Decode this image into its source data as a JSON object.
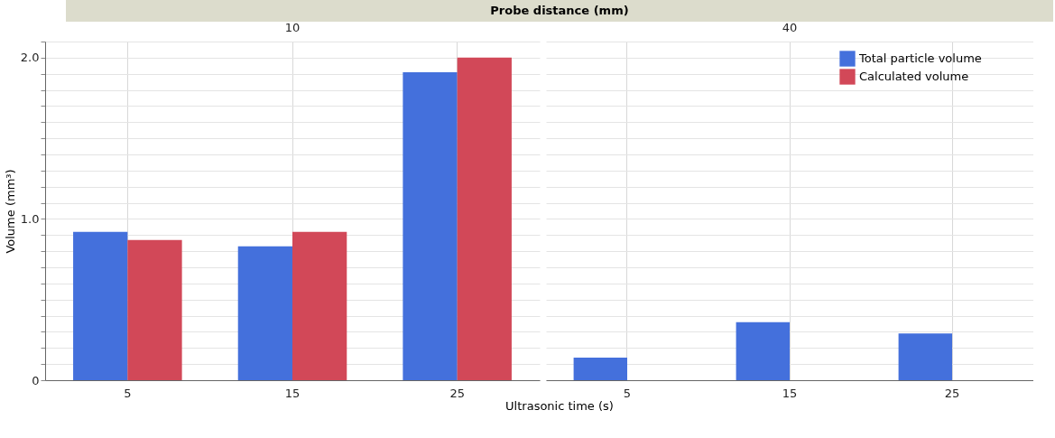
{
  "chart_data": [
    {
      "type": "bar",
      "title": "Probe distance (mm)",
      "subtitle": "10",
      "xlabel": "Ultrasonic time (s)",
      "ylabel": "Volume (mm³)",
      "categories": [
        "5",
        "15",
        "25"
      ],
      "series": [
        {
          "name": "Total particle volume",
          "color": "#4470dc",
          "values": [
            0.92,
            0.83,
            1.91
          ]
        },
        {
          "name": "Calculated volume",
          "color": "#d24858",
          "values": [
            0.87,
            0.92,
            2.0
          ]
        }
      ],
      "ylim": [
        0,
        2.1
      ],
      "yticks": [
        0,
        {
          "value": 0.1,
          "label": null
        },
        {
          "value": 0.2,
          "label": null
        },
        {
          "value": 0.3,
          "label": null
        },
        {
          "value": 0.4,
          "label": null
        },
        {
          "value": 0.5,
          "label": null
        },
        {
          "value": 0.6,
          "label": null
        },
        {
          "value": 0.7,
          "label": null
        },
        {
          "value": 0.8,
          "label": null
        },
        {
          "value": 0.9,
          "label": null
        },
        {
          "value": 1.0,
          "label": "1.0"
        },
        {
          "value": 1.1,
          "label": null
        },
        {
          "value": 1.2,
          "label": null
        },
        {
          "value": 1.3,
          "label": null
        },
        {
          "value": 1.4,
          "label": null
        },
        {
          "value": 1.5,
          "label": null
        },
        {
          "value": 1.6,
          "label": null
        },
        {
          "value": 1.7,
          "label": null
        },
        {
          "value": 1.8,
          "label": null
        },
        {
          "value": 1.9,
          "label": null
        },
        {
          "value": 2.0,
          "label": "2.0"
        },
        {
          "value": 2.1,
          "label": null
        }
      ],
      "grid": true,
      "legend": "top right"
    },
    {
      "type": "bar",
      "subtitle": "40",
      "categories": [
        "5",
        "15",
        "25"
      ],
      "series": [
        {
          "name": "Total particle volume",
          "color": "#4470dc",
          "values": [
            0.14,
            0.36,
            0.29
          ]
        },
        {
          "name": "Calculated volume",
          "color": "#d24858",
          "values": [
            null,
            null,
            null
          ]
        }
      ],
      "ylim": [
        0,
        2.1
      ],
      "yticks": [
        0,
        0.1,
        0.2,
        0.3,
        0.4,
        0.5,
        0.6,
        0.7,
        0.8,
        0.9,
        1.0,
        1.1,
        1.2,
        1.3,
        1.4,
        1.5,
        1.6,
        1.7,
        1.8,
        1.9,
        2.0,
        2.1
      ],
      "grid": true,
      "tick_labels": "x"
    }
  ]
}
